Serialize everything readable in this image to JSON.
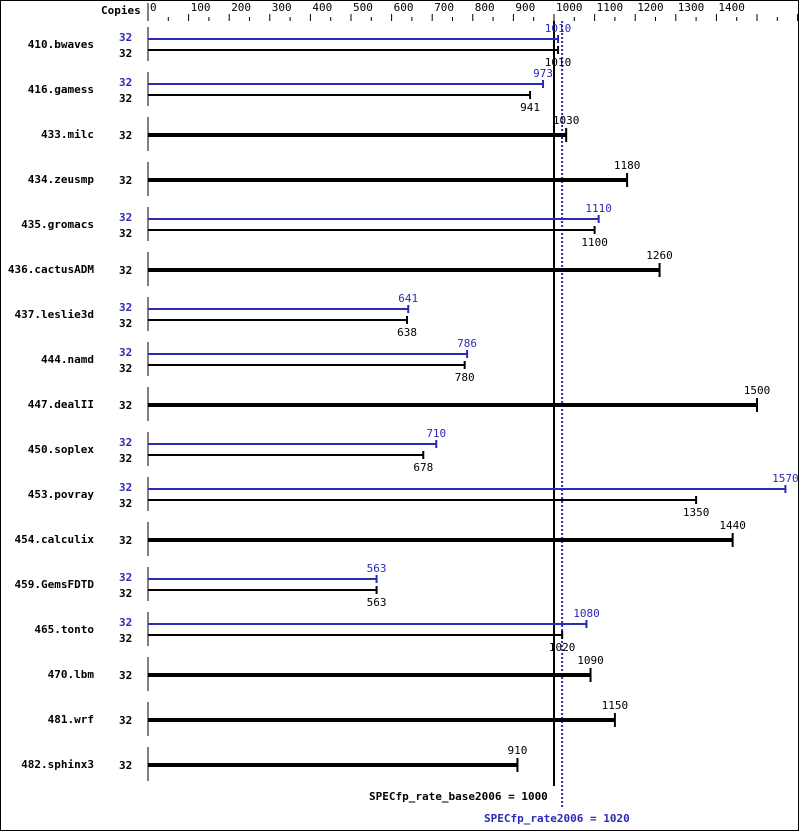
{
  "chart_data": {
    "type": "bar",
    "orientation": "horizontal",
    "copies_header": "Copies",
    "xlim": [
      0,
      1600
    ],
    "x_ticks": [
      0,
      100,
      200,
      300,
      400,
      500,
      600,
      700,
      800,
      900,
      1000,
      1100,
      1200,
      1300,
      1400,
      1600
    ],
    "colors": {
      "base": "#000000",
      "peak": "#2a2ab4"
    },
    "benchmarks": [
      {
        "name": "410.bwaves",
        "peak_copies": "32",
        "peak": 1010,
        "base_copies": "32",
        "base": 1010
      },
      {
        "name": "416.gamess",
        "peak_copies": "32",
        "peak": 973,
        "base_copies": "32",
        "base": 941
      },
      {
        "name": "433.milc",
        "base_copies": "32",
        "base": 1030
      },
      {
        "name": "434.zeusmp",
        "base_copies": "32",
        "base": 1180
      },
      {
        "name": "435.gromacs",
        "peak_copies": "32",
        "peak": 1110,
        "base_copies": "32",
        "base": 1100
      },
      {
        "name": "436.cactusADM",
        "base_copies": "32",
        "base": 1260
      },
      {
        "name": "437.leslie3d",
        "peak_copies": "32",
        "peak": 641,
        "base_copies": "32",
        "base": 638
      },
      {
        "name": "444.namd",
        "peak_copies": "32",
        "peak": 786,
        "base_copies": "32",
        "base": 780
      },
      {
        "name": "447.dealII",
        "base_copies": "32",
        "base": 1500
      },
      {
        "name": "450.soplex",
        "peak_copies": "32",
        "peak": 710,
        "base_copies": "32",
        "base": 678
      },
      {
        "name": "453.povray",
        "peak_copies": "32",
        "peak": 1570,
        "base_copies": "32",
        "base": 1350
      },
      {
        "name": "454.calculix",
        "base_copies": "32",
        "base": 1440
      },
      {
        "name": "459.GemsFDTD",
        "peak_copies": "32",
        "peak": 563,
        "base_copies": "32",
        "base": 563
      },
      {
        "name": "465.tonto",
        "peak_copies": "32",
        "peak": 1080,
        "base_copies": "32",
        "base": 1020
      },
      {
        "name": "470.lbm",
        "base_copies": "32",
        "base": 1090
      },
      {
        "name": "481.wrf",
        "base_copies": "32",
        "base": 1150
      },
      {
        "name": "482.sphinx3",
        "base_copies": "32",
        "base": 910
      }
    ],
    "base_reference": {
      "label": "SPECfp_rate_base2006 = 1000",
      "value": 1000
    },
    "peak_reference": {
      "label": "SPECfp_rate2006 = 1020",
      "value": 1020
    }
  }
}
